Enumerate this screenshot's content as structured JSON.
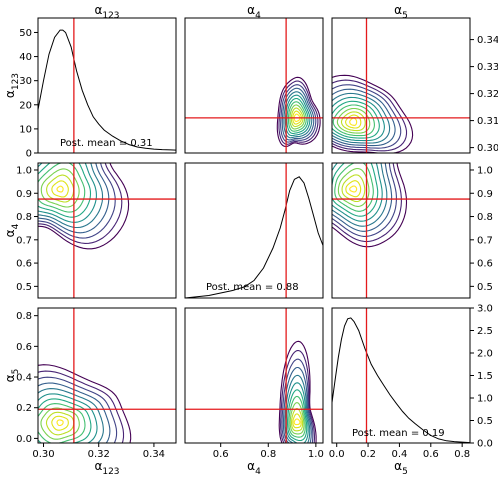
{
  "chart_data": {
    "type": "corner",
    "parameters": [
      {
        "id": "a123",
        "label_base": "α",
        "label_sub": "123",
        "true_value": 0.311,
        "posterior_mean_text": "Post. mean = 0.31",
        "marginal_peak": 51,
        "mode": 0.307
      },
      {
        "id": "a4",
        "label_base": "α",
        "label_sub": "4",
        "true_value": 0.875,
        "posterior_mean_text": "Post. mean = 0.88",
        "marginal_peak": 0.97,
        "mode": 0.92
      },
      {
        "id": "a5",
        "label_base": "α",
        "label_sub": "5",
        "true_value": 0.19,
        "posterior_mean_text": "Post. mean = 0.19",
        "marginal_peak": 2.78,
        "mode": 0.08
      }
    ],
    "param_ranges": {
      "a123": [
        0.298,
        0.348
      ],
      "a4": [
        0.45,
        1.03
      ],
      "a5": [
        -0.03,
        0.85
      ]
    },
    "diag_ranges": {
      "a123": [
        0,
        56
      ],
      "a4": [
        0,
        1.08
      ],
      "a5": [
        0,
        3.0
      ]
    },
    "ticks": {
      "row0_y": [
        "0",
        "10",
        "20",
        "30",
        "40",
        "50"
      ],
      "row0_right": [
        "0.30",
        "0.31",
        "0.32",
        "0.33",
        "0.34"
      ],
      "row1_y": [
        "0.5",
        "0.6",
        "0.7",
        "0.8",
        "0.9",
        "1.0"
      ],
      "row1_right": [
        "0.5",
        "0.6",
        "0.7",
        "0.8",
        "0.9",
        "1.0"
      ],
      "row2_y": [
        "0.0",
        "0.2",
        "0.4",
        "0.6",
        "0.8"
      ],
      "row2_right": [
        "0.0",
        "0.5",
        "1.0",
        "1.5",
        "2.0",
        "2.5",
        "3.0"
      ],
      "col0_x": [
        "0.30",
        "0.32",
        "0.34"
      ],
      "col1_x": [
        "0.6",
        "0.8",
        "1.0"
      ],
      "col2_x": [
        "0.0",
        "0.2",
        "0.4",
        "0.6",
        "0.8"
      ]
    },
    "marginals": {
      "a123": {
        "x": [
          0.298,
          0.3,
          0.302,
          0.304,
          0.306,
          0.307,
          0.308,
          0.31,
          0.312,
          0.314,
          0.316,
          0.318,
          0.32,
          0.322,
          0.325,
          0.328,
          0.331,
          0.334,
          0.337,
          0.34,
          0.343,
          0.346,
          0.348
        ],
        "y": [
          18,
          30,
          41,
          48,
          51,
          51,
          50,
          44,
          34,
          26,
          20,
          15,
          12,
          9.5,
          7,
          5,
          3.5,
          2.5,
          2,
          1.6,
          1.4,
          1.3,
          1.2
        ]
      },
      "a4": {
        "x": [
          0.45,
          0.5,
          0.55,
          0.6,
          0.65,
          0.7,
          0.74,
          0.78,
          0.82,
          0.85,
          0.87,
          0.89,
          0.91,
          0.93,
          0.95,
          0.97,
          0.99,
          1.01,
          1.03
        ],
        "y": [
          0.0,
          0.01,
          0.02,
          0.04,
          0.06,
          0.09,
          0.14,
          0.24,
          0.4,
          0.56,
          0.7,
          0.86,
          0.95,
          0.97,
          0.92,
          0.8,
          0.66,
          0.52,
          0.42
        ]
      },
      "a5": {
        "x": [
          -0.03,
          -0.01,
          0.01,
          0.03,
          0.05,
          0.07,
          0.09,
          0.11,
          0.14,
          0.18,
          0.22,
          0.26,
          0.3,
          0.34,
          0.38,
          0.42,
          0.46,
          0.5,
          0.55,
          0.6,
          0.65,
          0.7,
          0.75,
          0.8,
          0.85
        ],
        "y": [
          0.9,
          1.4,
          1.9,
          2.3,
          2.6,
          2.76,
          2.78,
          2.7,
          2.5,
          2.1,
          1.75,
          1.5,
          1.28,
          1.07,
          0.88,
          0.7,
          0.55,
          0.43,
          0.29,
          0.17,
          0.09,
          0.05,
          0.03,
          0.02,
          0.01
        ]
      }
    },
    "contour_levels": 12,
    "contour_colors": [
      "#440154",
      "#482475",
      "#414487",
      "#355f8d",
      "#2a788e",
      "#21918c",
      "#22a884",
      "#44bf70",
      "#7ad151",
      "#bddf26",
      "#dfe318",
      "#fde725"
    ]
  }
}
